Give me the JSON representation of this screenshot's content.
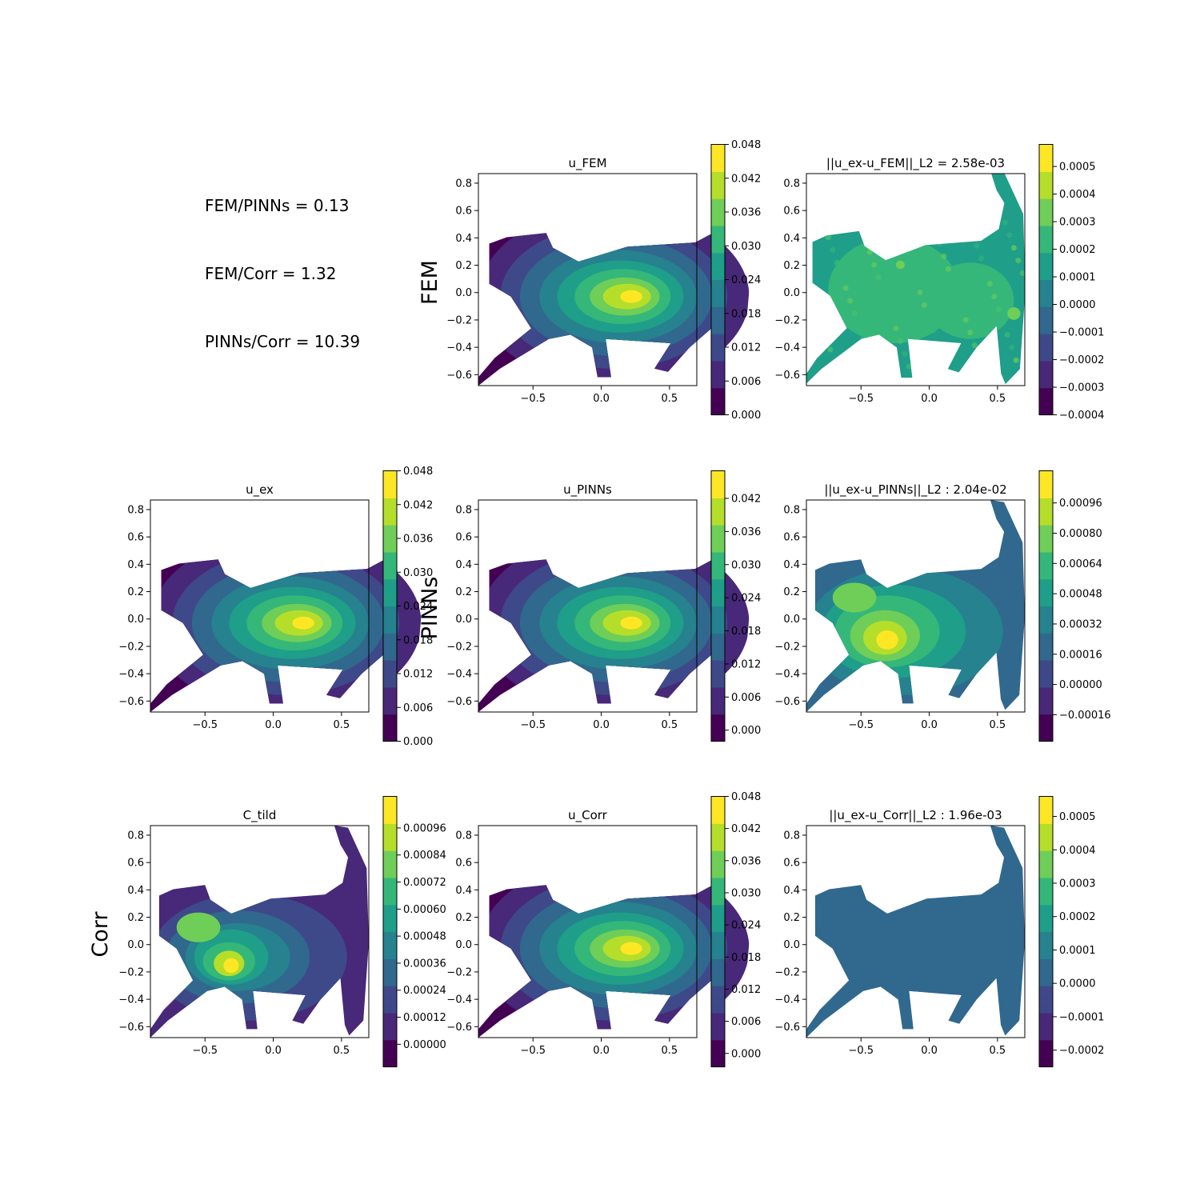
{
  "ratios": {
    "fem_pinns": "FEM/PINNs = 0.13",
    "fem_corr": "FEM/Corr = 1.32",
    "pinns_corr": "PINNs/Corr = 10.39"
  },
  "row_labels": {
    "fem": "FEM",
    "pinns": "PINNs",
    "corr": "Corr"
  },
  "colormap": [
    "#440154",
    "#482878",
    "#3e4989",
    "#31688e",
    "#26828e",
    "#1f9e89",
    "#35b779",
    "#6ece58",
    "#b5de2b",
    "#fde725"
  ],
  "chart_data": [
    {
      "id": "u_FEM",
      "type": "heatmap",
      "title": "u_FEM",
      "field": "solution",
      "xlim": [
        -0.9,
        0.7
      ],
      "ylim": [
        -0.68,
        0.87
      ],
      "xticks": [
        "−0.5",
        "0.0",
        "0.5"
      ],
      "yticks": [
        "−0.6",
        "−0.4",
        "−0.2",
        "0.0",
        "0.2",
        "0.4",
        "0.6",
        "0.8"
      ],
      "colorbar": {
        "min": 0.0,
        "max": 0.048,
        "ticks": [
          "0.000",
          "0.006",
          "0.012",
          "0.018",
          "0.024",
          "0.030",
          "0.036",
          "0.042",
          "0.048"
        ]
      }
    },
    {
      "id": "err_FEM",
      "type": "heatmap",
      "title": "||u_ex-u_FEM||_L2 = 2.58e-03",
      "field": "error_fem",
      "xlim": [
        -0.9,
        0.7
      ],
      "ylim": [
        -0.68,
        0.87
      ],
      "xticks": [
        "−0.5",
        "0.0",
        "0.5"
      ],
      "yticks": [
        "−0.6",
        "−0.4",
        "−0.2",
        "0.0",
        "0.2",
        "0.4",
        "0.6",
        "0.8"
      ],
      "colorbar": {
        "min": -0.0004,
        "max": 0.00058,
        "ticks": [
          "−0.0004",
          "−0.0003",
          "−0.0002",
          "−0.0001",
          "0.0000",
          "0.0001",
          "0.0002",
          "0.0003",
          "0.0004",
          "0.0005"
        ]
      }
    },
    {
      "id": "u_ex",
      "type": "heatmap",
      "title": "u_ex",
      "field": "solution",
      "xlim": [
        -0.9,
        0.7
      ],
      "ylim": [
        -0.68,
        0.87
      ],
      "xticks": [
        "−0.5",
        "0.0",
        "0.5"
      ],
      "yticks": [
        "−0.6",
        "−0.4",
        "−0.2",
        "0.0",
        "0.2",
        "0.4",
        "0.6",
        "0.8"
      ],
      "colorbar": {
        "min": 0.0,
        "max": 0.048,
        "ticks": [
          "0.000",
          "0.006",
          "0.012",
          "0.018",
          "0.024",
          "0.030",
          "0.036",
          "0.042",
          "0.048"
        ]
      }
    },
    {
      "id": "u_PINNs",
      "type": "heatmap",
      "title": "u_PINNs",
      "field": "solution",
      "xlim": [
        -0.9,
        0.7
      ],
      "ylim": [
        -0.68,
        0.87
      ],
      "xticks": [
        "−0.5",
        "0.0",
        "0.5"
      ],
      "yticks": [
        "−0.6",
        "−0.4",
        "−0.2",
        "0.0",
        "0.2",
        "0.4",
        "0.6",
        "0.8"
      ],
      "colorbar": {
        "min": -0.002,
        "max": 0.047,
        "ticks": [
          "0.000",
          "0.006",
          "0.012",
          "0.018",
          "0.024",
          "0.030",
          "0.036",
          "0.042"
        ]
      }
    },
    {
      "id": "err_PINNs",
      "type": "heatmap",
      "title": "||u_ex-u_PINNs||_L2 : 2.04e-02",
      "field": "error_pinns",
      "xlim": [
        -0.9,
        0.7
      ],
      "ylim": [
        -0.68,
        0.87
      ],
      "xticks": [
        "−0.5",
        "0.0",
        "0.5"
      ],
      "yticks": [
        "−0.6",
        "−0.4",
        "−0.2",
        "0.0",
        "0.2",
        "0.4",
        "0.6",
        "0.8"
      ],
      "colorbar": {
        "min": -0.0003,
        "max": 0.00113,
        "ticks": [
          "−0.00016",
          "0.00000",
          "0.00016",
          "0.00032",
          "0.00048",
          "0.00064",
          "0.00080",
          "0.00096"
        ]
      }
    },
    {
      "id": "C_tild",
      "type": "heatmap",
      "title": "C_tild",
      "field": "correction",
      "xlim": [
        -0.9,
        0.7
      ],
      "ylim": [
        -0.68,
        0.87
      ],
      "xticks": [
        "−0.5",
        "0.0",
        "0.5"
      ],
      "yticks": [
        "−0.6",
        "−0.4",
        "−0.2",
        "0.0",
        "0.2",
        "0.4",
        "0.6",
        "0.8"
      ],
      "colorbar": {
        "min": -0.0001,
        "max": 0.0011,
        "ticks": [
          "0.00000",
          "0.00012",
          "0.00024",
          "0.00036",
          "0.00048",
          "0.00060",
          "0.00072",
          "0.00084",
          "0.00096"
        ]
      }
    },
    {
      "id": "u_Corr",
      "type": "heatmap",
      "title": "u_Corr",
      "field": "solution",
      "xlim": [
        -0.9,
        0.7
      ],
      "ylim": [
        -0.68,
        0.87
      ],
      "xticks": [
        "−0.5",
        "0.0",
        "0.5"
      ],
      "yticks": [
        "−0.6",
        "−0.4",
        "−0.2",
        "0.0",
        "0.2",
        "0.4",
        "0.6",
        "0.8"
      ],
      "colorbar": {
        "min": -0.0025,
        "max": 0.048,
        "ticks": [
          "0.000",
          "0.006",
          "0.012",
          "0.018",
          "0.024",
          "0.030",
          "0.036",
          "0.042",
          "0.048"
        ]
      }
    },
    {
      "id": "err_Corr",
      "type": "heatmap",
      "title": "||u_ex-u_Corr||_L2 : 1.96e-03",
      "field": "error_corr",
      "xlim": [
        -0.9,
        0.7
      ],
      "ylim": [
        -0.68,
        0.87
      ],
      "xticks": [
        "−0.5",
        "0.0",
        "0.5"
      ],
      "yticks": [
        "−0.6",
        "−0.4",
        "−0.2",
        "0.0",
        "0.2",
        "0.4",
        "0.6",
        "0.8"
      ],
      "colorbar": {
        "min": -0.00025,
        "max": 0.00056,
        "ticks": [
          "−0.0002",
          "−0.0001",
          "0.0000",
          "0.0001",
          "0.0002",
          "0.0003",
          "0.0004",
          "0.0005"
        ]
      }
    }
  ]
}
